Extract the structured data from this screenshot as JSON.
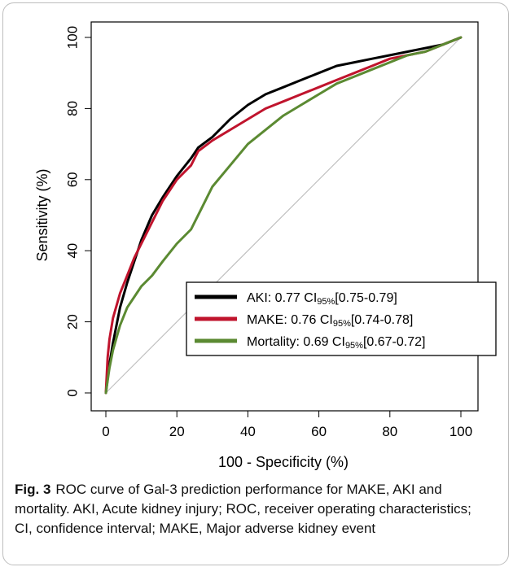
{
  "chart_data": {
    "type": "line",
    "title": "",
    "xlabel": "100 - Specificity (%)",
    "ylabel": "Sensitivity (%)",
    "xlim": [
      0,
      100
    ],
    "ylim": [
      0,
      100
    ],
    "xticks": [
      "0",
      "20",
      "40",
      "60",
      "80",
      "100"
    ],
    "yticks": [
      "0",
      "20",
      "40",
      "60",
      "80",
      "100"
    ],
    "grid": false,
    "legend_position": "lower-right",
    "reference_line": {
      "x": [
        0,
        100
      ],
      "y": [
        0,
        100
      ],
      "color": "#bfbfbf"
    },
    "series": [
      {
        "name": "AKI",
        "legend_prefix": "AKI: 0.77  CI",
        "legend_sub": "95%",
        "legend_suffix": "[0.75-0.79]",
        "color": "#000000",
        "x": [
          0,
          1,
          2,
          4,
          6,
          8,
          10,
          13,
          16,
          20,
          24,
          26,
          30,
          35,
          40,
          45,
          50,
          55,
          60,
          65,
          70,
          75,
          80,
          85,
          90,
          95,
          100
        ],
        "y": [
          0,
          8,
          14,
          24,
          31,
          37,
          43,
          50,
          55,
          61,
          66,
          69,
          72,
          77,
          81,
          84,
          86,
          88,
          90,
          92,
          93,
          94,
          95,
          96,
          97,
          98,
          100
        ]
      },
      {
        "name": "MAKE",
        "legend_prefix": "MAKE: 0.76 CI",
        "legend_sub": "95%",
        "legend_suffix": "[0.74-0.78]",
        "color": "#c0142d",
        "x": [
          0,
          0.5,
          1,
          2,
          4,
          6,
          8,
          10,
          13,
          16,
          20,
          24,
          26,
          30,
          35,
          40,
          45,
          50,
          55,
          60,
          65,
          70,
          75,
          80,
          85,
          90,
          95,
          100
        ],
        "y": [
          0,
          10,
          15,
          21,
          28,
          33,
          38,
          42,
          48,
          54,
          60,
          64,
          68,
          71,
          74,
          77,
          80,
          82,
          84,
          86,
          88,
          90,
          92,
          94,
          95,
          96,
          98,
          100
        ]
      },
      {
        "name": "Mortality",
        "legend_prefix": "Mortality: 0.69 CI",
        "legend_sub": "95%",
        "legend_suffix": "[0.67-0.72]",
        "color": "#5b8a32",
        "x": [
          0,
          1,
          2,
          4,
          6,
          8,
          10,
          13,
          16,
          20,
          24,
          27,
          30,
          35,
          40,
          45,
          50,
          55,
          60,
          65,
          70,
          75,
          80,
          85,
          90,
          95,
          100
        ],
        "y": [
          0,
          7,
          12,
          19,
          24,
          27,
          30,
          33,
          37,
          42,
          46,
          52,
          58,
          64,
          70,
          74,
          78,
          81,
          84,
          87,
          89,
          91,
          93,
          95,
          96,
          98,
          100
        ]
      }
    ]
  },
  "caption": {
    "figure_label": "Fig. 3",
    "text": "ROC curve of Gal-3 prediction performance for MAKE, AKI and mortality. AKI, Acute kidney injury; ROC, receiver operating characteristics; CI, confidence interval; MAKE, Major adverse kidney event"
  }
}
